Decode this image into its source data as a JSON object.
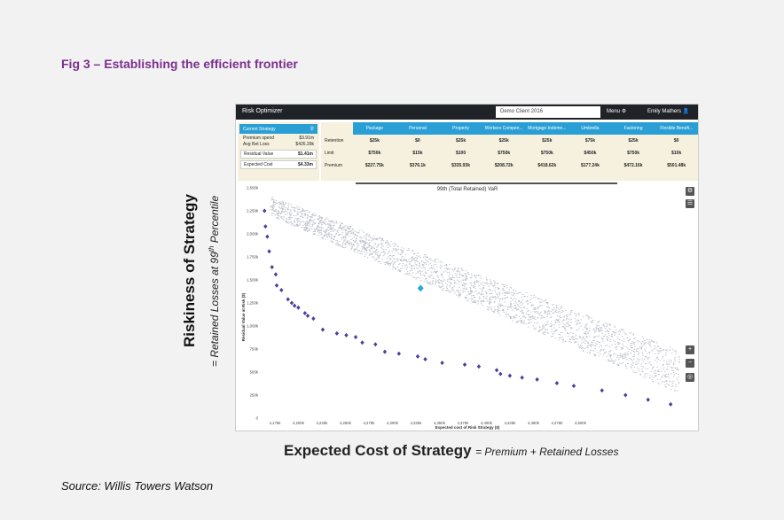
{
  "figure": {
    "title": "Fig 3 – Establishing the efficient frontier",
    "source": "Source: Willis Towers Watson",
    "y_label_main": "Riskiness of Strategy",
    "y_label_sub_prefix": "= Retained Losses at 99",
    "y_label_sub_sup": "th",
    "y_label_sub_suffix": " Percentile",
    "x_label_main": "Expected Cost of Strategy",
    "x_label_sub": "= Premium + Retained Losses"
  },
  "app": {
    "title": "Risk Optimizer",
    "client": "Demo Client 2016",
    "menu": "Menu",
    "menu_icon": "gear-icon",
    "user": "Emily Mathers",
    "user_icon": "person-icon"
  },
  "current_strategy": {
    "label": "Current Strategy",
    "premium_spend_label": "Premium spend",
    "premium_spend_value": "$3.91m",
    "avg_ret_loss_label": "Avg Ret Loss",
    "avg_ret_loss_value": "$426.39k",
    "residual_value_label": "Residual Value",
    "residual_value_value": "$1.41m",
    "expected_cost_label": "Expected Cost",
    "expected_cost_value": "$4.33m"
  },
  "coverage_table": {
    "columns": [
      "Package",
      "Personal",
      "Property",
      "Workers Compen...",
      "Mortgage Indemn...",
      "Umbrella",
      "Factoring",
      "Flexible Benefi..."
    ],
    "rows": [
      {
        "label": "Retention",
        "values": [
          "$25k",
          "$0",
          "$25k",
          "$25k",
          "$25k",
          "$75k",
          "$25k",
          "$0"
        ]
      },
      {
        "label": "Limit",
        "values": [
          "$750k",
          "$15k",
          "$100",
          "$750k",
          "$750k",
          "$450k",
          "$750k",
          "$10k"
        ]
      },
      {
        "label": "Premium",
        "values": [
          "$227.75k",
          "$376.1k",
          "$335.93k",
          "$208.72k",
          "$418.62k",
          "$177.24k",
          "$472.16k",
          "$501.48k"
        ]
      }
    ]
  },
  "chart_data": {
    "type": "scatter",
    "title": "99th (Total Retained) VaR",
    "xlabel": "Expected cost of Risk Strategy ($)",
    "ylabel": "Residual Value at Risk ($)",
    "xlim": [
      4160,
      4610
    ],
    "ylim": [
      0,
      2500
    ],
    "x_ticks": [
      "4,175k",
      "4,200k",
      "4,225k",
      "4,250k",
      "4,275k",
      "4,300k",
      "4,325k",
      "4,350k",
      "4,375k",
      "4,400k",
      "4,425k",
      "4,450k",
      "4,475k",
      "4,500k"
    ],
    "x_tick_values": [
      4175,
      4200,
      4225,
      4250,
      4275,
      4300,
      4325,
      4350,
      4375,
      4400,
      4425,
      4450,
      4475,
      4500
    ],
    "y_ticks": [
      "0",
      "250k",
      "500k",
      "750k",
      "1,000k",
      "1,250k",
      "1,500k",
      "1,750k",
      "2,000k",
      "2,250k",
      "2,500k"
    ],
    "y_tick_values": [
      0,
      250,
      500,
      750,
      1000,
      1250,
      1500,
      1750,
      2000,
      2250,
      2500
    ],
    "grid": false,
    "series": [
      {
        "name": "Efficient frontier",
        "color": "#4b3f99",
        "points": [
          [
            4164,
            2250
          ],
          [
            4165,
            2080
          ],
          [
            4167,
            1970
          ],
          [
            4169,
            1810
          ],
          [
            4172,
            1640
          ],
          [
            4176,
            1560
          ],
          [
            4177,
            1440
          ],
          [
            4182,
            1390
          ],
          [
            4189,
            1290
          ],
          [
            4193,
            1250
          ],
          [
            4196,
            1220
          ],
          [
            4200,
            1200
          ],
          [
            4207,
            1140
          ],
          [
            4210,
            1110
          ],
          [
            4216,
            1080
          ],
          [
            4226,
            960
          ],
          [
            4241,
            920
          ],
          [
            4251,
            900
          ],
          [
            4261,
            880
          ],
          [
            4268,
            820
          ],
          [
            4282,
            800
          ],
          [
            4292,
            720
          ],
          [
            4307,
            700
          ],
          [
            4327,
            670
          ],
          [
            4335,
            640
          ],
          [
            4353,
            600
          ],
          [
            4377,
            580
          ],
          [
            4392,
            560
          ],
          [
            4411,
            520
          ],
          [
            4415,
            480
          ],
          [
            4425,
            460
          ],
          [
            4438,
            440
          ],
          [
            4454,
            420
          ],
          [
            4475,
            380
          ],
          [
            4493,
            350
          ],
          [
            4523,
            300
          ],
          [
            4548,
            250
          ],
          [
            4572,
            200
          ],
          [
            4596,
            150
          ]
        ]
      },
      {
        "name": "Current strategy",
        "color": "#29a8e0",
        "points": [
          [
            4330,
            1410
          ]
        ]
      }
    ],
    "cloud_color": "#b9bcc8"
  },
  "controls": {
    "settings_icon": "gear-icon",
    "list_icon": "list-icon",
    "zoom_in": "+",
    "zoom_out": "−",
    "reset_icon": "target-icon"
  }
}
